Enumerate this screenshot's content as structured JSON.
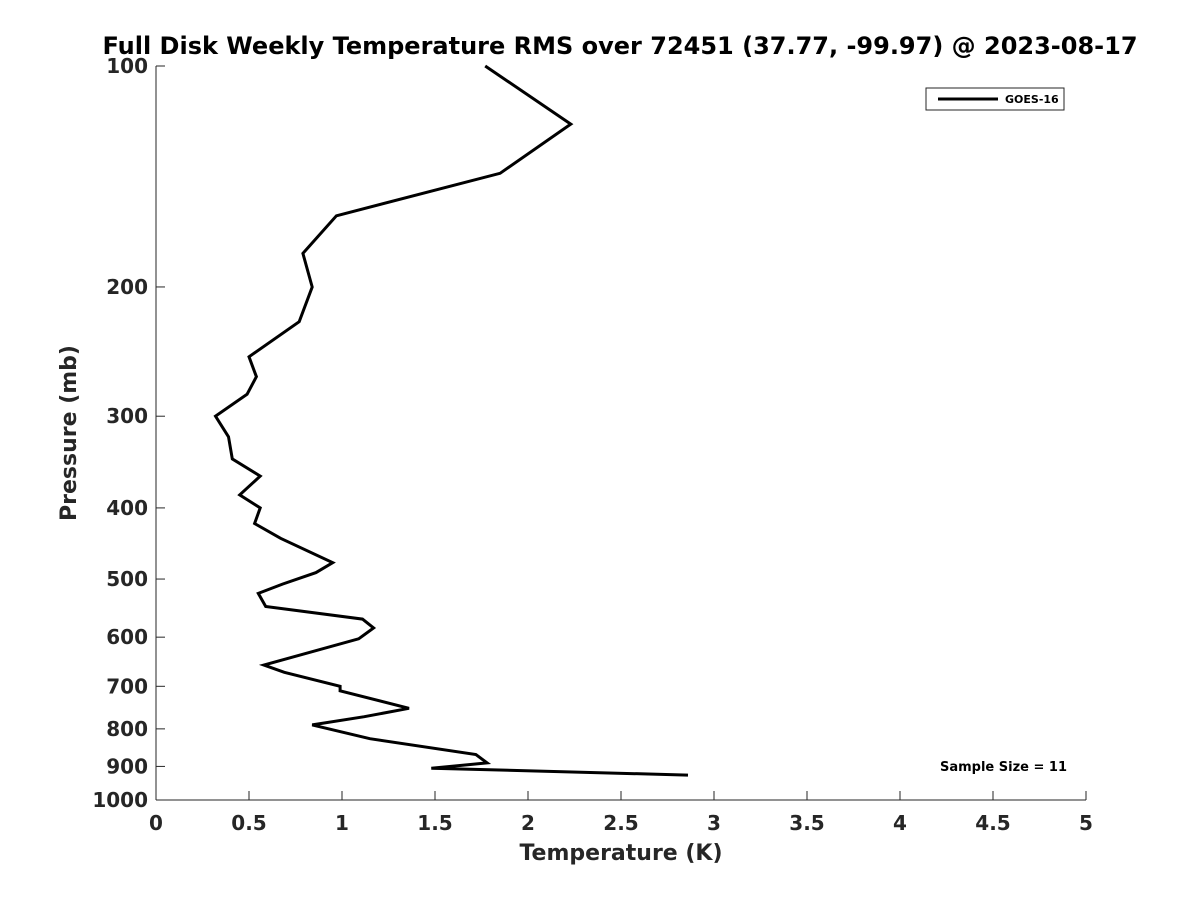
{
  "chart_data": {
    "type": "line",
    "title": "Full Disk Weekly Temperature RMS over 72451 (37.77, -99.97) @ 2023-08-17",
    "xlabel": "Temperature (K)",
    "ylabel": "Pressure (mb)",
    "xlim": [
      0,
      5
    ],
    "ylim": [
      100,
      1000
    ],
    "y_scale": "log",
    "y_reversed": true,
    "grid": false,
    "legend_position": "top-right",
    "x_ticks": [
      "0",
      "0.5",
      "1",
      "1.5",
      "2",
      "2.5",
      "3",
      "3.5",
      "4",
      "4.5",
      "5"
    ],
    "y_ticks": [
      "100",
      "200",
      "300",
      "400",
      "500",
      "600",
      "700",
      "800",
      "900",
      "1000"
    ],
    "annotation": "Sample Size = 11",
    "series": [
      {
        "name": "GOES-16",
        "color": "#000000",
        "points": [
          {
            "x": 1.77,
            "y": 100
          },
          {
            "x": 2.23,
            "y": 120
          },
          {
            "x": 1.85,
            "y": 140
          },
          {
            "x": 0.97,
            "y": 160
          },
          {
            "x": 0.79,
            "y": 180
          },
          {
            "x": 0.84,
            "y": 200
          },
          {
            "x": 0.77,
            "y": 223
          },
          {
            "x": 0.5,
            "y": 249
          },
          {
            "x": 0.54,
            "y": 265
          },
          {
            "x": 0.49,
            "y": 280
          },
          {
            "x": 0.32,
            "y": 300
          },
          {
            "x": 0.39,
            "y": 320
          },
          {
            "x": 0.41,
            "y": 343
          },
          {
            "x": 0.56,
            "y": 362
          },
          {
            "x": 0.45,
            "y": 384
          },
          {
            "x": 0.56,
            "y": 400
          },
          {
            "x": 0.53,
            "y": 420
          },
          {
            "x": 0.67,
            "y": 440
          },
          {
            "x": 0.95,
            "y": 475
          },
          {
            "x": 0.86,
            "y": 490
          },
          {
            "x": 0.68,
            "y": 508
          },
          {
            "x": 0.55,
            "y": 523
          },
          {
            "x": 0.59,
            "y": 545
          },
          {
            "x": 1.11,
            "y": 567
          },
          {
            "x": 1.17,
            "y": 583
          },
          {
            "x": 1.09,
            "y": 603
          },
          {
            "x": 0.58,
            "y": 655
          },
          {
            "x": 0.69,
            "y": 670
          },
          {
            "x": 0.99,
            "y": 700
          },
          {
            "x": 0.99,
            "y": 710
          },
          {
            "x": 1.36,
            "y": 750
          },
          {
            "x": 1.12,
            "y": 770
          },
          {
            "x": 0.84,
            "y": 790
          },
          {
            "x": 1.15,
            "y": 825
          },
          {
            "x": 1.72,
            "y": 867
          },
          {
            "x": 1.78,
            "y": 890
          },
          {
            "x": 1.48,
            "y": 905
          },
          {
            "x": 2.86,
            "y": 925
          }
        ]
      }
    ]
  }
}
